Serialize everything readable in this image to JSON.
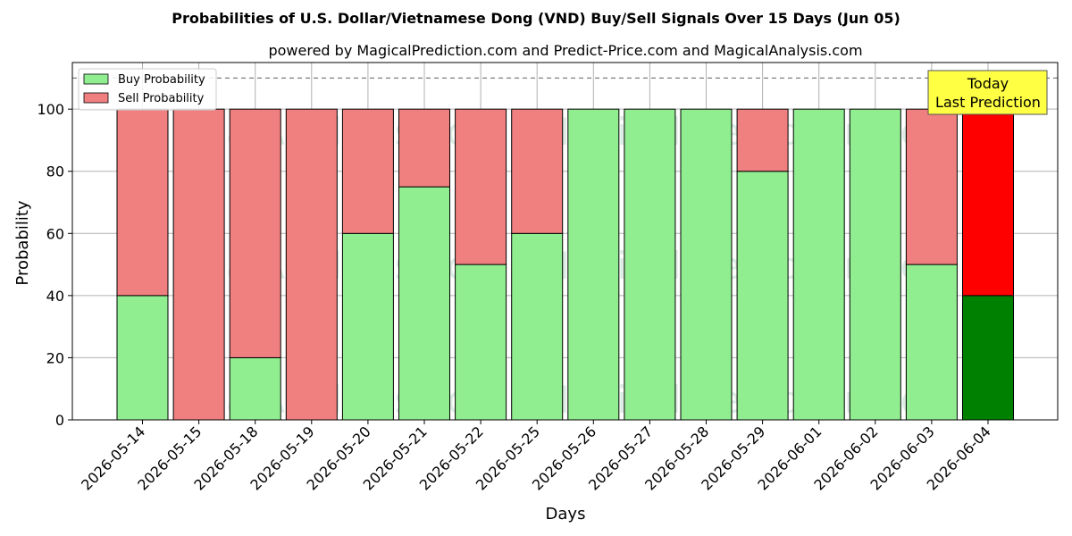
{
  "chart_data": {
    "type": "bar",
    "stacked": true,
    "title": "Probabilities of U.S. Dollar/Vietnamese Dong (VND) Buy/Sell Signals Over 15 Days (Jun 05)",
    "subtitle": "powered by MagicalPrediction.com and Predict-Price.com and MagicalAnalysis.com",
    "xlabel": "Days",
    "ylabel": "Probability",
    "ylim": [
      0,
      115
    ],
    "yticks": [
      0,
      20,
      40,
      60,
      80,
      100
    ],
    "reference_line": 110,
    "grid": true,
    "legend_position": "top-left",
    "categories": [
      "2026-05-14",
      "2026-05-15",
      "2026-05-18",
      "2026-05-19",
      "2026-05-20",
      "2026-05-21",
      "2026-05-22",
      "2026-05-25",
      "2026-05-26",
      "2026-05-27",
      "2026-05-28",
      "2026-05-29",
      "2026-06-01",
      "2026-06-02",
      "2026-06-03",
      "2026-06-04"
    ],
    "series": [
      {
        "name": "Buy Probability",
        "color": "#90ee90",
        "values": [
          40,
          0,
          20,
          0,
          60,
          75,
          50,
          60,
          100,
          100,
          100,
          80,
          100,
          100,
          50,
          40
        ]
      },
      {
        "name": "Sell Probability",
        "color": "#f08080",
        "values": [
          60,
          100,
          80,
          100,
          40,
          25,
          50,
          40,
          0,
          0,
          0,
          20,
          0,
          0,
          50,
          60
        ]
      }
    ],
    "highlight": {
      "index": 15,
      "buy_color": "#008000",
      "sell_color": "#ff0000"
    },
    "annotation": {
      "lines": [
        "Today",
        "Last Prediction"
      ],
      "background": "#ffff44"
    },
    "watermarks": [
      "MagicalAnalysis.com",
      "MagicalPrediction.com"
    ]
  }
}
